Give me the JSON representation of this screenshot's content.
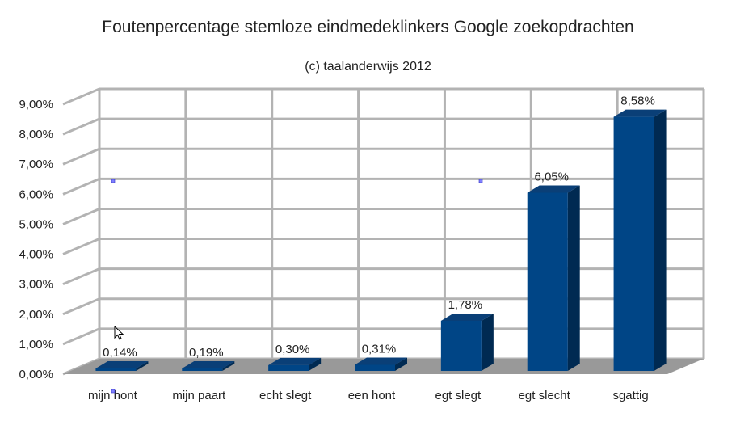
{
  "chart_data": {
    "type": "bar",
    "title": "Foutenpercentage stemloze eindmedeklinkers Google zoekopdrachten",
    "subtitle": "(c) taalanderwijs 2012",
    "categories": [
      "mijn hont",
      "mijn paart",
      "echt slegt",
      "een hont",
      "egt slegt",
      "egt slecht",
      "sgattig"
    ],
    "values": [
      0.14,
      0.19,
      0.3,
      0.31,
      1.78,
      6.05,
      8.58
    ],
    "value_labels": [
      "0,14%",
      "0,19%",
      "0,30%",
      "0,31%",
      "1,78%",
      "6,05%",
      "8,58%"
    ],
    "ylim": [
      0,
      9
    ],
    "yticks": [
      "0,00%",
      "1,00%",
      "2,00%",
      "3,00%",
      "4,00%",
      "5,00%",
      "6,00%",
      "7,00%",
      "8,00%",
      "9,00%"
    ],
    "grid": true,
    "style": "3d",
    "colors": {
      "bar_front": "#004586",
      "bar_side": "#002a52",
      "bar_top": "#0a3f77",
      "grid": "#b3b3b3",
      "floor": "#999999"
    }
  }
}
